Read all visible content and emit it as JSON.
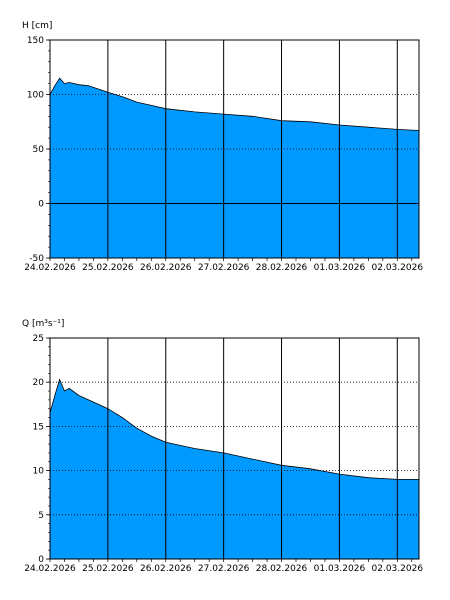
{
  "chart_data": [
    {
      "type": "area",
      "ylabel": "H [cm]",
      "ylim": [
        -50,
        150
      ],
      "yticks": [
        -50,
        0,
        50,
        100,
        150
      ],
      "xlim": [
        "24.02.2026 00:00",
        "02.03.2026 09:00"
      ],
      "xticks": [
        "24.02.2026",
        "25.02.2026",
        "26.02.2026",
        "27.02.2026",
        "28.02.2026",
        "01.03.2026",
        "02.03.2026"
      ],
      "color": "#0099ff",
      "grid": "dotted-horizontal, solid-vertical",
      "series": [
        {
          "x": [
            "24.02.2026 00:00",
            "24.02.2026 02:00",
            "24.02.2026 04:00",
            "24.02.2026 06:00",
            "24.02.2026 08:00",
            "24.02.2026 12:00",
            "24.02.2026 16:00",
            "24.02.2026 20:00",
            "25.02.2026 00:00",
            "25.02.2026 06:00",
            "25.02.2026 12:00",
            "25.02.2026 18:00",
            "26.02.2026 00:00",
            "26.02.2026 12:00",
            "27.02.2026 00:00",
            "27.02.2026 12:00",
            "28.02.2026 00:00",
            "28.02.2026 12:00",
            "01.03.2026 00:00",
            "01.03.2026 12:00",
            "02.03.2026 00:00",
            "02.03.2026 09:00"
          ],
          "y": [
            100,
            108,
            115,
            110,
            111,
            109,
            108,
            105,
            102,
            98,
            93,
            90,
            87,
            84,
            82,
            80,
            76,
            75,
            72,
            70,
            68,
            67
          ]
        }
      ]
    },
    {
      "type": "area",
      "ylabel": "Q [m³s⁻¹]",
      "ylim": [
        0,
        25
      ],
      "yticks": [
        0,
        5,
        10,
        15,
        20,
        25
      ],
      "xlim": [
        "24.02.2026 00:00",
        "02.03.2026 09:00"
      ],
      "xticks": [
        "24.02.2026",
        "25.02.2026",
        "26.02.2026",
        "27.02.2026",
        "28.02.2026",
        "01.03.2026",
        "02.03.2026"
      ],
      "color": "#0099ff",
      "grid": "dotted-horizontal, solid-vertical",
      "series": [
        {
          "x": [
            "24.02.2026 00:00",
            "24.02.2026 02:00",
            "24.02.2026 04:00",
            "24.02.2026 06:00",
            "24.02.2026 08:00",
            "24.02.2026 12:00",
            "24.02.2026 16:00",
            "24.02.2026 20:00",
            "25.02.2026 00:00",
            "25.02.2026 06:00",
            "25.02.2026 12:00",
            "25.02.2026 18:00",
            "26.02.2026 00:00",
            "26.02.2026 12:00",
            "27.02.2026 00:00",
            "27.02.2026 12:00",
            "28.02.2026 00:00",
            "28.02.2026 12:00",
            "01.03.2026 00:00",
            "01.03.2026 12:00",
            "02.03.2026 00:00",
            "02.03.2026 09:00"
          ],
          "y": [
            16.5,
            18.5,
            20.3,
            19.0,
            19.3,
            18.5,
            18.0,
            17.5,
            17.0,
            16.0,
            14.8,
            13.9,
            13.2,
            12.5,
            12.0,
            11.3,
            10.6,
            10.2,
            9.6,
            9.2,
            9.0,
            9.0
          ]
        }
      ]
    }
  ]
}
